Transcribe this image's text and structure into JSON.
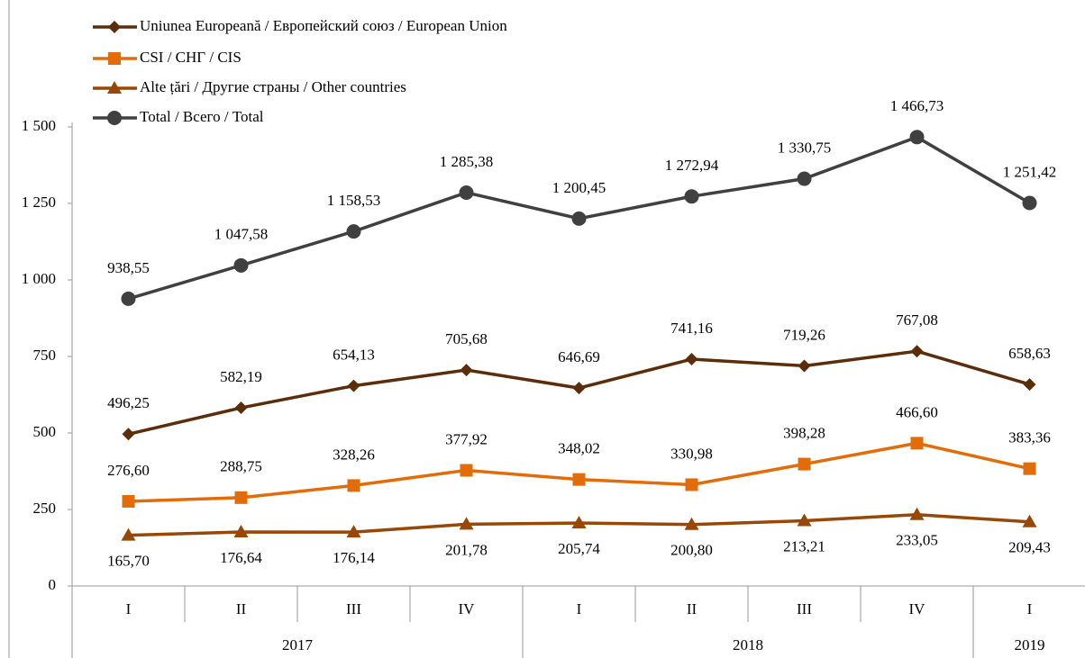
{
  "chart_data": {
    "type": "line",
    "categories": [
      "I",
      "II",
      "III",
      "IV",
      "I",
      "II",
      "III",
      "IV",
      "I"
    ],
    "years": [
      "2017",
      "2017",
      "2017",
      "2017",
      "2018",
      "2018",
      "2018",
      "2018",
      "2019"
    ],
    "ylim": [
      0,
      1500
    ],
    "yticks": [
      0,
      250,
      500,
      750,
      {
        "value": 1000,
        "label": "1 000"
      },
      {
        "value": 1250,
        "label": "1 250"
      },
      {
        "value": 1500,
        "label": "1 500"
      }
    ],
    "legend": "top-left",
    "series": [
      {
        "name": "Uniunea Europeană / Европейский союз / European Union",
        "color": "#5c2d0a",
        "marker": "diamond",
        "label_position": "above",
        "values": [
          496.25,
          582.19,
          654.13,
          705.68,
          646.69,
          741.16,
          719.26,
          767.08,
          658.63
        ],
        "value_labels": [
          "496,25",
          "582,19",
          "654,13",
          "705,68",
          "646,69",
          "741,16",
          "719,26",
          "767,08",
          "658,63"
        ]
      },
      {
        "name": "CSI / СНГ / CIS",
        "color": "#e36c0a",
        "marker": "square",
        "label_position": "above",
        "values": [
          276.6,
          288.75,
          328.26,
          377.92,
          348.02,
          330.98,
          398.28,
          466.6,
          383.36
        ],
        "value_labels": [
          "276,60",
          "288,75",
          "328,26",
          "377,92",
          "348,02",
          "330,98",
          "398,28",
          "466,60",
          "383,36"
        ]
      },
      {
        "name": "Alte țări / Другие страны / Other countries",
        "color": "#974706",
        "marker": "triangle",
        "label_position": "below",
        "values": [
          165.7,
          176.64,
          176.14,
          201.78,
          205.74,
          200.8,
          213.21,
          233.05,
          209.43
        ],
        "value_labels": [
          "165,70",
          "176,64",
          "176,14",
          "201,78",
          "205,74",
          "200,80",
          "213,21",
          "233,05",
          "209,43"
        ]
      },
      {
        "name": "Total / Всего / Total",
        "color": "#404040",
        "marker": "circle",
        "label_position": "above",
        "values": [
          938.55,
          1047.58,
          1158.53,
          1285.38,
          1200.45,
          1272.94,
          1330.75,
          1466.73,
          1251.42
        ],
        "value_labels": [
          "938,55",
          "1 047,58",
          "1 158,53",
          "1 285,38",
          "1 200,45",
          "1 272,94",
          "1 330,75",
          "1 466,73",
          "1 251,42"
        ]
      }
    ]
  }
}
